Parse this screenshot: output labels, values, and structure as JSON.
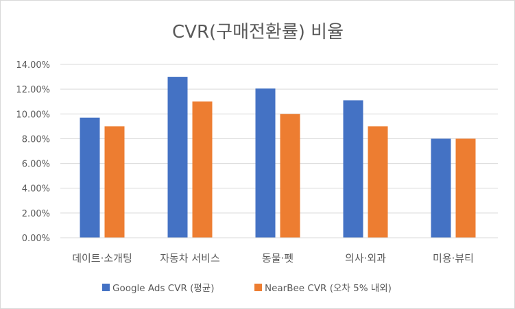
{
  "chart_data": {
    "type": "bar",
    "title": "CVR(구매전환률) 비율",
    "xlabel": "",
    "ylabel": "",
    "categories": [
      "데이트·소개팅",
      "자동차 서비스",
      "동물·펫",
      "의사·외과",
      "미용·뷰티"
    ],
    "series": [
      {
        "name": "Google Ads CVR (평균)",
        "color": "#4472C4",
        "values": [
          9.7,
          13.0,
          12.05,
          11.1,
          8.0
        ]
      },
      {
        "name": "NearBee CVR (오차 5% 내외)",
        "color": "#ED7D31",
        "values": [
          9.0,
          11.0,
          10.0,
          9.0,
          8.0
        ]
      }
    ],
    "ylim": [
      0,
      14
    ],
    "yticks": [
      "0.00%",
      "2.00%",
      "4.00%",
      "6.00%",
      "8.00%",
      "10.00%",
      "12.00%",
      "14.00%"
    ],
    "value_format": "percent",
    "grid": true,
    "gridline_color": "#d9d9d9",
    "legend_position": "bottom"
  }
}
